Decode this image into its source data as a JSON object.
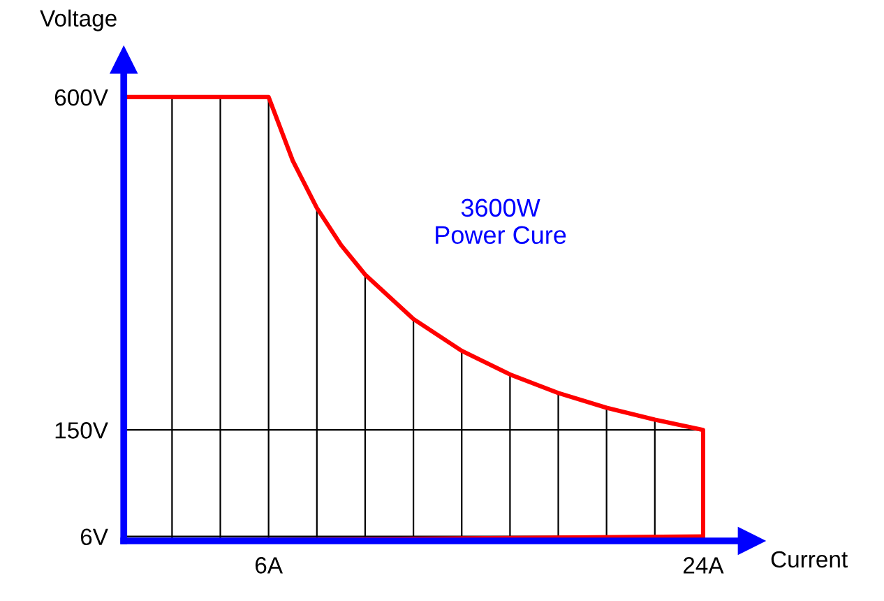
{
  "chart_data": {
    "type": "line",
    "xlabel": "Current",
    "ylabel": "Voltage",
    "annotations": [
      "3600W\nPower Cure"
    ],
    "series": [
      {
        "color": "#ff0000",
        "x": [
          0,
          6,
          7,
          8,
          9,
          10,
          12,
          14,
          16,
          18,
          20,
          22,
          24,
          24
        ],
        "values": [
          600,
          600,
          514,
          450,
          400,
          360,
          300,
          257,
          225,
          200,
          180,
          164,
          150,
          6
        ]
      },
      {
        "color": "#ff0000",
        "x": [
          0,
          24
        ],
        "values": [
          0,
          6
        ]
      }
    ],
    "xlim": [
      0,
      26
    ],
    "ylim": [
      0,
      650
    ],
    "xticks": [
      {
        "value": 2,
        "label": null
      },
      {
        "value": 4,
        "label": null
      },
      {
        "value": 6,
        "label": "6A"
      },
      {
        "value": 8,
        "label": null
      },
      {
        "value": 10,
        "label": null
      },
      {
        "value": 12,
        "label": null
      },
      {
        "value": 14,
        "label": null
      },
      {
        "value": 16,
        "label": null
      },
      {
        "value": 18,
        "label": null
      },
      {
        "value": 20,
        "label": null
      },
      {
        "value": 22,
        "label": null
      },
      {
        "value": 24,
        "label": "24A"
      }
    ],
    "yticks": [
      {
        "value": 6,
        "label": "6V"
      },
      {
        "value": 150,
        "label": "150V"
      },
      {
        "value": 600,
        "label": "600V"
      }
    ],
    "grid": true,
    "marker": "none",
    "line_style": "solid",
    "legend": false
  }
}
